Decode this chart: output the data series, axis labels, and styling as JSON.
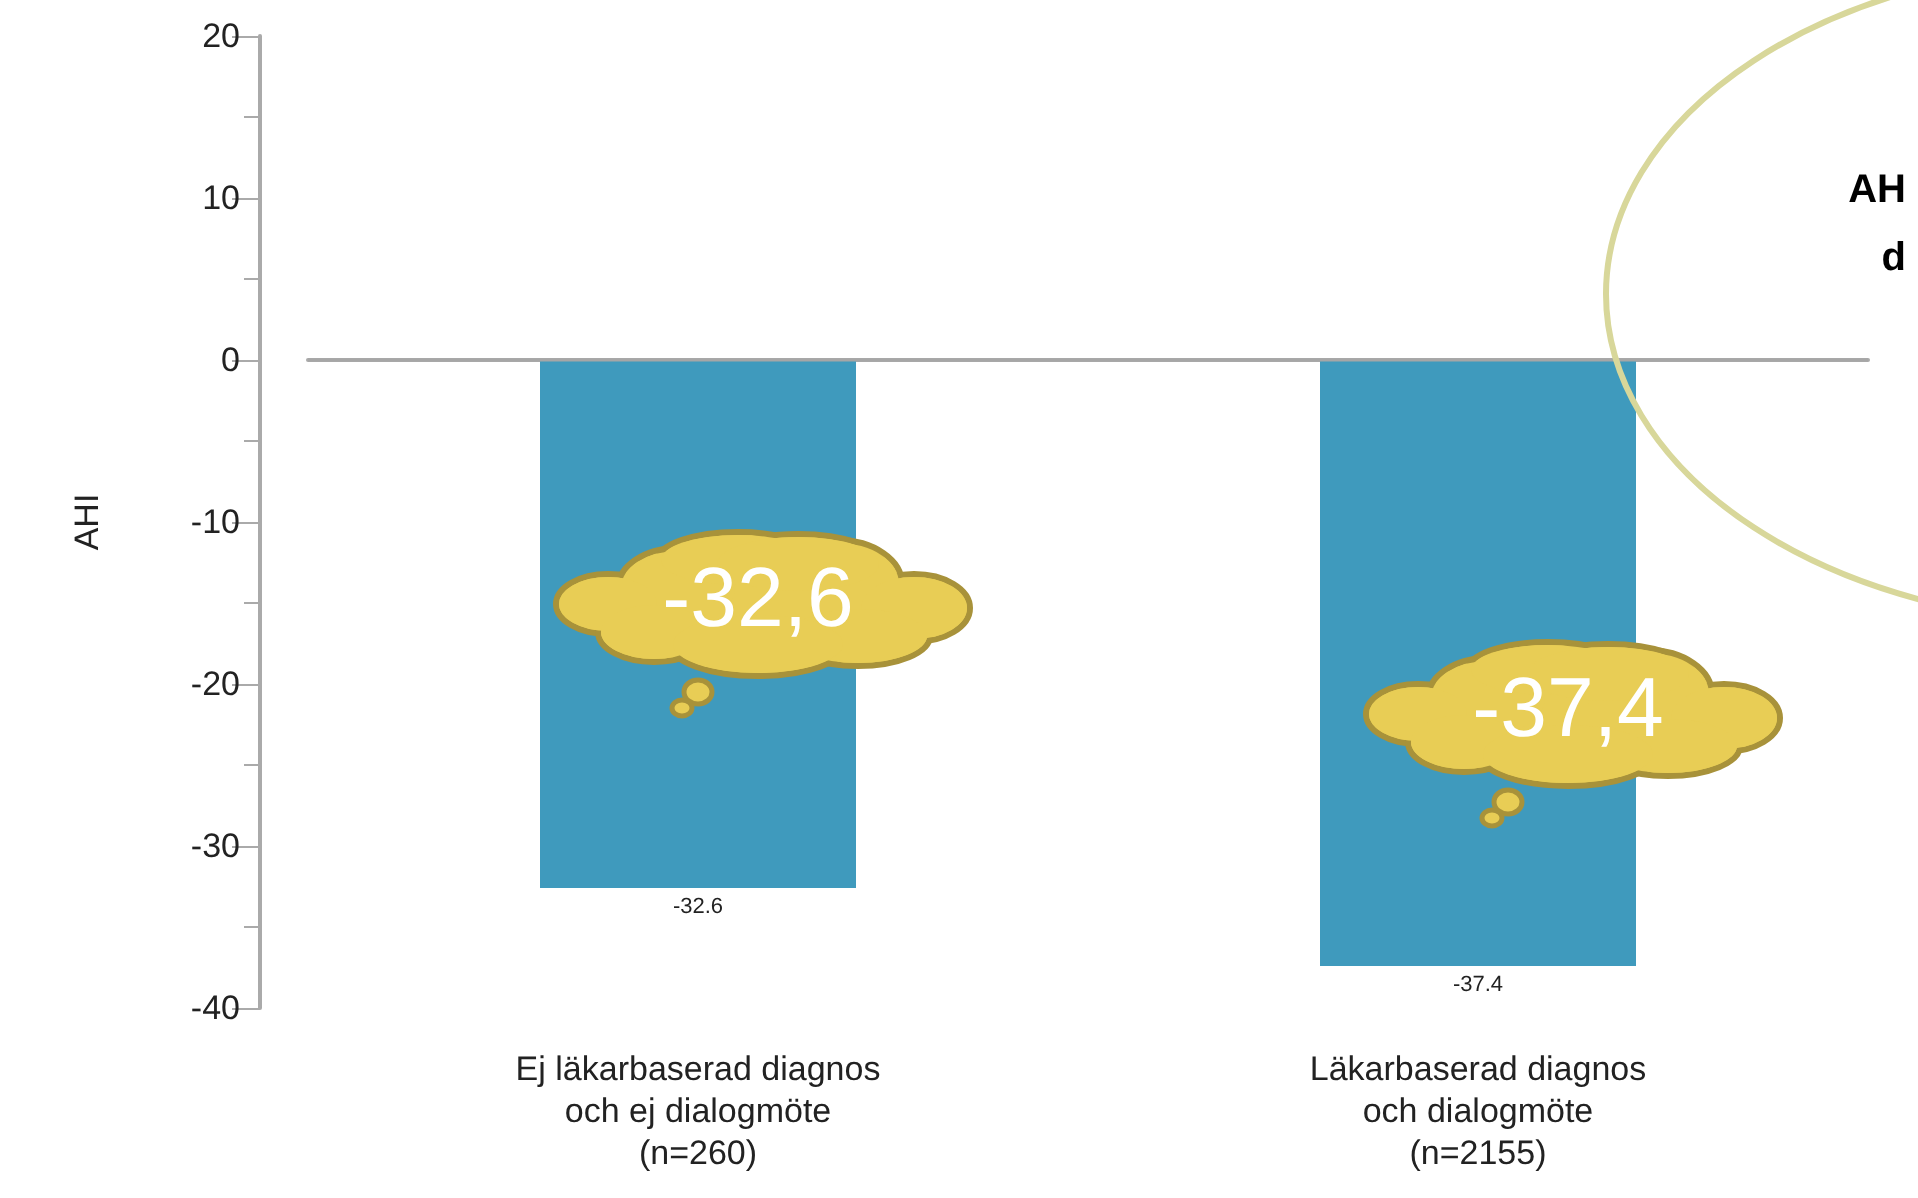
{
  "chart_data": {
    "type": "bar",
    "ylabel": "AHI",
    "categories": [
      "Ej läkarbaserad diagnos\noch ej dialogmöte\n(n=260)",
      "Läkarbaserad diagnos\noch dialogmöte\n(n=2155)"
    ],
    "values": [
      -32.6,
      -37.4
    ],
    "color": "#3f9abd",
    "data_labels": true,
    "ylim": [
      -40,
      20
    ],
    "yticks": [
      -40,
      -30,
      -20,
      -10,
      0,
      10,
      20
    ],
    "grid": false,
    "ref_lines": [
      {
        "axis": "y",
        "value": 0,
        "color": "#a6a6a6"
      }
    ],
    "annotations": [
      "-32,6",
      "-37,4",
      "AH",
      "d"
    ]
  }
}
